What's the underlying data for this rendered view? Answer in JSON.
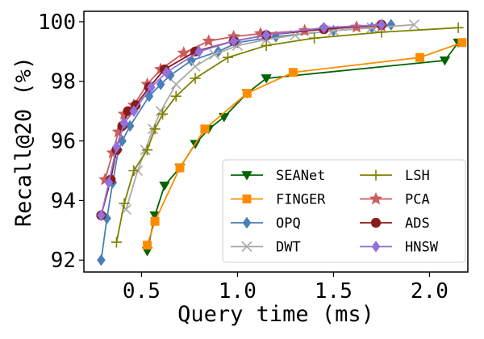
{
  "chart_data": {
    "type": "line",
    "title": "",
    "xlabel": "Query time (ms)",
    "ylabel": "Recall@20 (%)",
    "xlim": [
      0.2,
      2.2
    ],
    "ylim": [
      91.6,
      100.35
    ],
    "xticks": [
      0.5,
      1.0,
      1.5,
      2.0
    ],
    "yticks": [
      92,
      94,
      96,
      98,
      100
    ],
    "xtick_labels": [
      "0.5",
      "1.0",
      "1.5",
      "2.0"
    ],
    "ytick_labels": [
      "92",
      "94",
      "96",
      "98",
      "100"
    ],
    "grid": false,
    "legend_position": "bottom-right",
    "series": [
      {
        "name": "SEANet",
        "color": "#006400",
        "marker": "triangle-down",
        "x": [
          0.53,
          0.57,
          0.62,
          0.7,
          0.78,
          0.85,
          0.93,
          1.05,
          1.15,
          2.08,
          2.15
        ],
        "y": [
          92.3,
          93.5,
          94.5,
          95.1,
          95.9,
          96.4,
          96.8,
          97.6,
          98.1,
          98.7,
          99.3
        ]
      },
      {
        "name": "FINGER",
        "color": "#ff8c00",
        "marker": "square",
        "x": [
          0.53,
          0.57,
          0.7,
          0.83,
          1.05,
          1.29,
          1.95,
          2.17
        ],
        "y": [
          92.5,
          93.3,
          95.1,
          96.4,
          97.6,
          98.3,
          98.8,
          99.3
        ]
      },
      {
        "name": "OPQ",
        "color": "#4a7fb8",
        "marker": "diamond",
        "x": [
          0.29,
          0.32,
          0.35,
          0.38,
          0.4,
          0.44,
          0.54,
          0.6,
          0.65,
          0.76,
          0.9,
          1.0,
          1.2,
          1.5,
          1.7,
          1.8
        ],
        "y": [
          92.0,
          93.4,
          94.6,
          95.7,
          96.0,
          96.5,
          97.5,
          97.9,
          98.2,
          98.7,
          99.0,
          99.3,
          99.5,
          99.7,
          99.8,
          99.9
        ]
      },
      {
        "name": "DWT",
        "color": "#a9a9a9",
        "marker": "x",
        "x": [
          0.42,
          0.48,
          0.52,
          0.56,
          0.6,
          0.68,
          0.78,
          0.88,
          1.0,
          1.15,
          1.3,
          1.5,
          1.7,
          1.92
        ],
        "y": [
          93.7,
          95.0,
          95.7,
          96.4,
          97.0,
          97.9,
          98.5,
          98.9,
          99.2,
          99.4,
          99.55,
          99.7,
          99.8,
          99.9
        ]
      },
      {
        "name": "LSH",
        "color": "#808000",
        "marker": "plus",
        "x": [
          0.37,
          0.41,
          0.46,
          0.53,
          0.57,
          0.61,
          0.68,
          0.78,
          0.95,
          1.15,
          1.4,
          1.75,
          2.15
        ],
        "y": [
          92.6,
          93.9,
          95.0,
          95.7,
          96.4,
          96.9,
          97.5,
          98.1,
          98.8,
          99.2,
          99.45,
          99.65,
          99.8
        ]
      },
      {
        "name": "PCA",
        "color": "#cd5c5c",
        "marker": "star",
        "x": [
          0.31,
          0.35,
          0.38,
          0.41,
          0.46,
          0.53,
          0.6,
          0.72,
          0.85,
          0.98,
          1.12,
          1.35,
          1.62,
          1.75
        ],
        "y": [
          94.7,
          95.6,
          96.3,
          96.9,
          97.2,
          97.9,
          98.4,
          98.95,
          99.35,
          99.5,
          99.6,
          99.7,
          99.82,
          99.85
        ]
      },
      {
        "name": "ADS",
        "color": "#8b1a1a",
        "marker": "circle",
        "x": [
          0.29,
          0.34,
          0.37,
          0.4,
          0.43,
          0.47,
          0.54,
          0.62,
          0.78,
          0.98,
          1.15,
          1.45,
          1.75
        ],
        "y": [
          93.5,
          94.7,
          95.7,
          96.5,
          97.0,
          97.2,
          97.8,
          98.4,
          99.0,
          99.35,
          99.55,
          99.75,
          99.9
        ]
      },
      {
        "name": "HNSW",
        "color": "#9370db",
        "marker": "diamond",
        "x": [
          0.29,
          0.33,
          0.37,
          0.41,
          0.46,
          0.55,
          0.63,
          0.8,
          0.98,
          1.15,
          1.45,
          1.75
        ],
        "y": [
          93.5,
          94.6,
          95.8,
          96.6,
          97.0,
          97.8,
          98.3,
          99.0,
          99.35,
          99.55,
          99.8,
          99.9
        ]
      }
    ]
  }
}
